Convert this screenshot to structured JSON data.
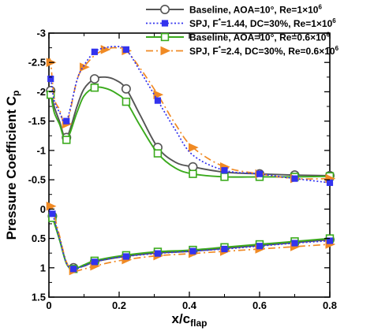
{
  "chart_data": {
    "type": "line",
    "xlabel": "x/c",
    "xlabel_sub": "flap",
    "ylabel": "Pressure Coefficient C",
    "ylabel_sub": "p",
    "xlim": [
      0,
      0.8
    ],
    "ylim": [
      1.5,
      -3
    ],
    "x_ticks": [
      "0",
      "0.2",
      "0.4",
      "0.6",
      "0.8"
    ],
    "x_tick_values": [
      0,
      0.2,
      0.4,
      0.6,
      0.8
    ],
    "y_ticks": [
      "-3",
      "-2.5",
      "-2",
      "-1.5",
      "-1",
      "-0.5",
      "0",
      "0.5",
      "1",
      "1.5"
    ],
    "y_tick_values": [
      -3,
      -2.5,
      -2,
      -1.5,
      -1,
      -0.5,
      0,
      0.5,
      1,
      1.5
    ],
    "legend_position": "top-right",
    "grid": false,
    "series": [
      {
        "name": "Baseline, AOA=10°, Re=1×10",
        "name_sup": "6",
        "color": "#555555",
        "line_style": "solid",
        "marker": "circle-open",
        "upper": {
          "x": [
            0,
            0.005,
            0.015,
            0.03,
            0.05,
            0.08,
            0.1,
            0.13,
            0.16,
            0.19,
            0.22,
            0.26,
            0.31,
            0.36,
            0.41,
            0.5,
            0.6,
            0.7,
            0.8
          ],
          "y": [
            -1.95,
            -2.02,
            -1.75,
            -1.5,
            -1.22,
            -1.75,
            -2.05,
            -2.22,
            -2.25,
            -2.2,
            -2.05,
            -1.6,
            -1.05,
            -0.8,
            -0.72,
            -0.63,
            -0.6,
            -0.58,
            -0.57
          ]
        },
        "lower": {
          "x": [
            0,
            0.01,
            0.03,
            0.05,
            0.07,
            0.1,
            0.13,
            0.2,
            0.3,
            0.4,
            0.5,
            0.6,
            0.7,
            0.8
          ],
          "y": [
            0.05,
            0.12,
            0.5,
            0.92,
            1.0,
            0.97,
            0.9,
            0.82,
            0.75,
            0.72,
            0.67,
            0.62,
            0.57,
            0.52
          ]
        },
        "upper_markers_x": [
          0.005,
          0.05,
          0.13,
          0.22,
          0.31,
          0.41,
          0.6,
          0.7,
          0.8
        ],
        "lower_markers_x": [
          0.01,
          0.07,
          0.13,
          0.22,
          0.31,
          0.41,
          0.5,
          0.6,
          0.7,
          0.8
        ]
      },
      {
        "name": "SPJ, F",
        "name_sup": "*",
        "name_rest": "=1.44, DC=30%, Re=1×10",
        "name_sup2": "6",
        "color": "#3333ee",
        "line_style": "dotted",
        "marker": "square-filled",
        "upper": {
          "x": [
            0,
            0.005,
            0.015,
            0.03,
            0.05,
            0.08,
            0.1,
            0.13,
            0.16,
            0.19,
            0.22,
            0.26,
            0.31,
            0.36,
            0.41,
            0.5,
            0.6,
            0.7,
            0.8
          ],
          "y": [
            -2.25,
            -2.22,
            -1.85,
            -1.65,
            -1.5,
            -2.2,
            -2.45,
            -2.68,
            -2.75,
            -2.77,
            -2.72,
            -2.35,
            -1.85,
            -1.35,
            -0.92,
            -0.66,
            -0.6,
            -0.52,
            -0.45
          ]
        },
        "lower": {
          "x": [
            0,
            0.01,
            0.03,
            0.05,
            0.07,
            0.1,
            0.13,
            0.2,
            0.3,
            0.4,
            0.5,
            0.6,
            0.7,
            0.8
          ],
          "y": [
            0.0,
            0.08,
            0.5,
            0.92,
            1.02,
            0.97,
            0.9,
            0.82,
            0.76,
            0.72,
            0.68,
            0.63,
            0.58,
            0.54
          ]
        },
        "upper_markers_x": [
          0.005,
          0.05,
          0.13,
          0.22,
          0.31,
          0.5,
          0.6,
          0.7,
          0.8
        ],
        "lower_markers_x": [
          0.01,
          0.07,
          0.13,
          0.22,
          0.31,
          0.41,
          0.5,
          0.6,
          0.7,
          0.8
        ]
      },
      {
        "name": "Baseline, AOA=10°, Re=0.6×10",
        "name_sup": "6",
        "color": "#3aaa1c",
        "line_style": "solid",
        "marker": "square-open",
        "upper": {
          "x": [
            0,
            0.005,
            0.015,
            0.03,
            0.05,
            0.08,
            0.1,
            0.13,
            0.16,
            0.19,
            0.22,
            0.26,
            0.31,
            0.36,
            0.41,
            0.5,
            0.6,
            0.7,
            0.8
          ],
          "y": [
            -1.9,
            -1.95,
            -1.65,
            -1.45,
            -1.18,
            -1.65,
            -1.93,
            -2.07,
            -2.06,
            -1.98,
            -1.83,
            -1.42,
            -0.95,
            -0.7,
            -0.6,
            -0.55,
            -0.55,
            -0.55,
            -0.56
          ]
        },
        "lower": {
          "x": [
            0,
            0.01,
            0.03,
            0.05,
            0.07,
            0.1,
            0.13,
            0.2,
            0.3,
            0.4,
            0.5,
            0.6,
            0.7,
            0.8
          ],
          "y": [
            0.08,
            0.15,
            0.52,
            0.93,
            1.02,
            0.95,
            0.88,
            0.8,
            0.73,
            0.7,
            0.65,
            0.6,
            0.55,
            0.5
          ]
        },
        "upper_markers_x": [
          0.005,
          0.05,
          0.13,
          0.22,
          0.31,
          0.41,
          0.5,
          0.6,
          0.7,
          0.8
        ],
        "lower_markers_x": [
          0.01,
          0.07,
          0.13,
          0.22,
          0.31,
          0.41,
          0.5,
          0.6,
          0.7,
          0.8
        ]
      },
      {
        "name": "SPJ, F",
        "name_sup": "*",
        "name_rest": "=2.4, DC=30%, Re=0.6×10",
        "name_sup2": "6",
        "color": "#f08a24",
        "line_style": "dashdot",
        "marker": "triangle-right-filled",
        "upper": {
          "x": [
            0,
            0.005,
            0.015,
            0.03,
            0.05,
            0.08,
            0.1,
            0.13,
            0.16,
            0.19,
            0.22,
            0.26,
            0.31,
            0.36,
            0.41,
            0.5,
            0.6,
            0.7,
            0.8
          ],
          "y": [
            -2.55,
            -2.5,
            -1.9,
            -1.7,
            -1.45,
            -2.2,
            -2.42,
            -2.62,
            -2.72,
            -2.75,
            -2.7,
            -2.4,
            -1.95,
            -1.45,
            -1.05,
            -0.72,
            -0.6,
            -0.52,
            -0.52
          ]
        },
        "lower": {
          "x": [
            0,
            0.01,
            0.03,
            0.05,
            0.07,
            0.1,
            0.13,
            0.2,
            0.3,
            0.4,
            0.5,
            0.6,
            0.7,
            0.8
          ],
          "y": [
            -0.1,
            0.0,
            0.45,
            0.9,
            1.05,
            1.02,
            0.97,
            0.88,
            0.8,
            0.76,
            0.72,
            0.68,
            0.64,
            0.6
          ]
        },
        "upper_markers_x": [
          0.005,
          0.05,
          0.1,
          0.16,
          0.22,
          0.31,
          0.41,
          0.5,
          0.6,
          0.7,
          0.8
        ],
        "lower_markers_x": [
          0.005,
          0.07,
          0.13,
          0.22,
          0.31,
          0.41,
          0.5,
          0.6,
          0.7,
          0.8
        ]
      }
    ]
  }
}
